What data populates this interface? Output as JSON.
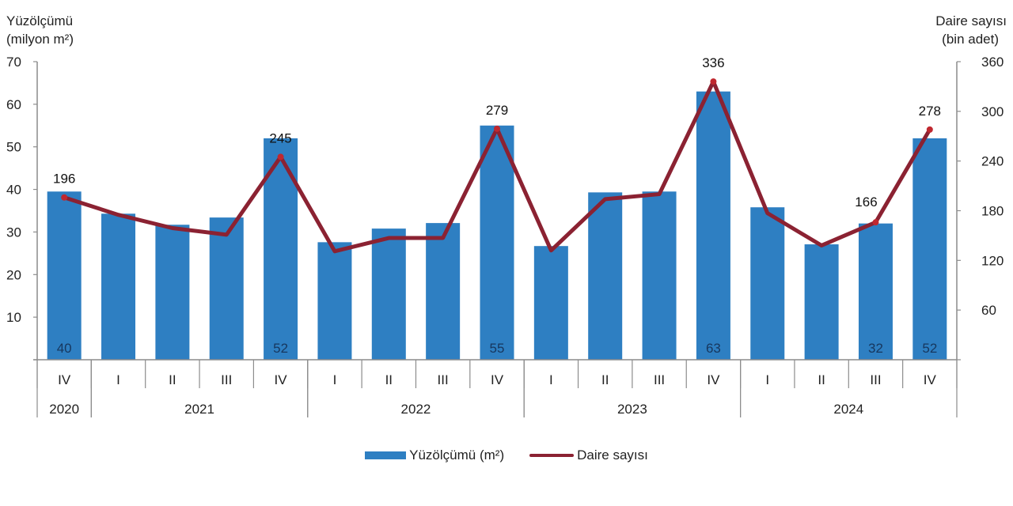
{
  "chart_data": {
    "type": "bar+line",
    "title": "",
    "left_axis": {
      "title_line1": "Yüzölçümü",
      "title_line2": "(milyon m²)",
      "min": 0,
      "max": 70,
      "ticks": [
        10,
        20,
        30,
        40,
        50,
        60,
        70
      ]
    },
    "right_axis": {
      "title_line1": "Daire sayısı",
      "title_line2": "(bin adet)",
      "min": 0,
      "max": 360,
      "ticks": [
        60,
        120,
        180,
        240,
        300,
        360
      ]
    },
    "categories": [
      "IV",
      "I",
      "II",
      "III",
      "IV",
      "I",
      "II",
      "III",
      "IV",
      "I",
      "II",
      "III",
      "IV",
      "I",
      "II",
      "III",
      "IV"
    ],
    "years": [
      {
        "label": "2020",
        "start": 0,
        "count": 1
      },
      {
        "label": "2021",
        "start": 1,
        "count": 4
      },
      {
        "label": "2022",
        "start": 5,
        "count": 4
      },
      {
        "label": "2023",
        "start": 9,
        "count": 4
      },
      {
        "label": "2024",
        "start": 13,
        "count": 4
      }
    ],
    "series": [
      {
        "name": "Yüzölçümü (m²)",
        "type": "bar",
        "axis": "left",
        "color": "#2e7fc2",
        "values": [
          39.5,
          34.3,
          31.7,
          33.4,
          52,
          27.6,
          30.8,
          32.1,
          55,
          26.7,
          39.3,
          39.5,
          63,
          35.8,
          27.1,
          32,
          52
        ],
        "labels": {
          "0": "40",
          "4": "52",
          "8": "55",
          "12": "63",
          "15": "32",
          "16": "52"
        }
      },
      {
        "name": "Daire sayısı",
        "type": "line",
        "axis": "right",
        "color": "#8b2232",
        "values": [
          196,
          175,
          159,
          151,
          245,
          131,
          147,
          147,
          279,
          132,
          194,
          200,
          336,
          177,
          138,
          166,
          278
        ],
        "labels": {
          "0": "196",
          "4": "245",
          "8": "279",
          "12": "336",
          "15": "166",
          "16": "278"
        }
      }
    ],
    "legend": {
      "position": "bottom",
      "items": [
        "Yüzölçümü (m²)",
        "Daire sayısı"
      ]
    },
    "grid": false
  },
  "legend": {
    "bar_label": "Yüzölçümü (m²)",
    "line_label": "Daire sayısı",
    "bar_color": "#2e7fc2",
    "line_color": "#8b2232"
  }
}
